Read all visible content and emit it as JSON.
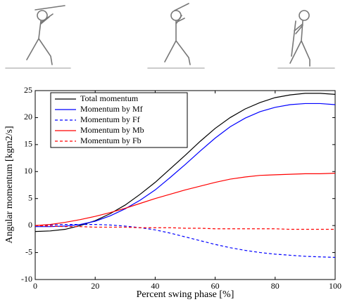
{
  "chart_data": {
    "type": "line",
    "xlabel": "Percent swing phase [%]",
    "ylabel": "Angular momentum [kgm2/s]",
    "x": [
      0,
      5,
      10,
      15,
      20,
      25,
      30,
      35,
      40,
      45,
      50,
      55,
      60,
      65,
      70,
      75,
      80,
      85,
      90,
      95,
      100
    ],
    "series": [
      {
        "name": "Total momentum",
        "color": "#000000",
        "dash": false,
        "values": [
          -1.1,
          -1.0,
          -0.7,
          0,
          0.9,
          2.2,
          3.8,
          5.8,
          8.0,
          10.5,
          13.0,
          15.6,
          18.0,
          20.0,
          21.6,
          22.8,
          23.7,
          24.2,
          24.5,
          24.5,
          24.3
        ]
      },
      {
        "name": "Momentum by Mf",
        "color": "#0000ff",
        "dash": false,
        "values": [
          -0.2,
          -0.2,
          -0.1,
          0.2,
          0.8,
          1.8,
          3.1,
          4.7,
          6.6,
          8.9,
          11.3,
          13.8,
          16.2,
          18.3,
          19.9,
          21.1,
          21.9,
          22.4,
          22.6,
          22.6,
          22.4
        ]
      },
      {
        "name": "Momentum by Ff",
        "color": "#0000ff",
        "dash": true,
        "values": [
          0,
          0.1,
          0.2,
          0.2,
          0.2,
          0.1,
          -0.1,
          -0.4,
          -0.8,
          -1.4,
          -2.1,
          -2.8,
          -3.5,
          -4.1,
          -4.6,
          -5.0,
          -5.3,
          -5.5,
          -5.7,
          -5.8,
          -5.9
        ]
      },
      {
        "name": "Momentum by Mb",
        "color": "#ff0000",
        "dash": false,
        "values": [
          0,
          0.2,
          0.6,
          1.1,
          1.7,
          2.4,
          3.2,
          4.1,
          5.0,
          5.8,
          6.6,
          7.3,
          8.0,
          8.6,
          9.0,
          9.3,
          9.4,
          9.5,
          9.6,
          9.6,
          9.7
        ]
      },
      {
        "name": "Momentum by Fb",
        "color": "#ff0000",
        "dash": true,
        "values": [
          0,
          -0.1,
          -0.2,
          -0.2,
          -0.3,
          -0.3,
          -0.3,
          -0.4,
          -0.4,
          -0.4,
          -0.5,
          -0.5,
          -0.6,
          -0.6,
          -0.6,
          -0.6,
          -0.6,
          -0.7,
          -0.7,
          -0.7,
          -0.7
        ]
      }
    ],
    "xlim": [
      0,
      100
    ],
    "xticks": [
      0,
      20,
      40,
      60,
      80,
      100
    ],
    "ylim": [
      -10,
      25
    ],
    "yticks": [
      -10,
      -5,
      0,
      5,
      10,
      15,
      20,
      25
    ],
    "grid": false,
    "legend": "upper-left"
  }
}
